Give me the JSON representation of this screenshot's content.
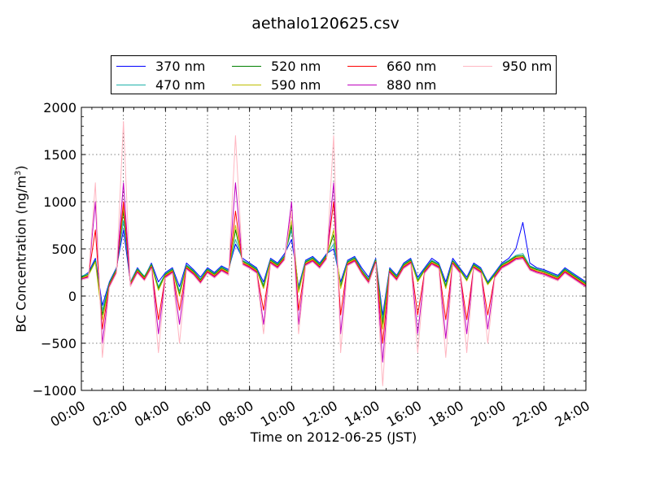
{
  "chart_data": {
    "type": "line",
    "title": "aethalo120625.csv",
    "xlabel": "Time on 2012-06-25 (JST)",
    "ylabel_prefix": "BC Concentration (ng/m",
    "ylabel_sup": "3",
    "ylabel_suffix": ")",
    "x_tick_labels": [
      "00:00",
      "02:00",
      "04:00",
      "06:00",
      "08:00",
      "10:00",
      "12:00",
      "14:00",
      "16:00",
      "18:00",
      "20:00",
      "22:00",
      "24:00"
    ],
    "y_tick_labels": [
      "2000",
      "1500",
      "1000",
      "500",
      "0",
      "−500",
      "−1000"
    ],
    "xlim": [
      "00:00",
      "24:00"
    ],
    "ylim": [
      -1000,
      2000
    ],
    "grid": true,
    "legend_position": "top-center",
    "x": [
      "00:00",
      "00:20",
      "00:40",
      "01:00",
      "01:20",
      "01:40",
      "02:00",
      "02:20",
      "02:40",
      "03:00",
      "03:20",
      "03:40",
      "04:00",
      "04:20",
      "04:40",
      "05:00",
      "05:20",
      "05:40",
      "06:00",
      "06:20",
      "06:40",
      "07:00",
      "07:20",
      "07:40",
      "08:00",
      "08:20",
      "08:40",
      "09:00",
      "09:20",
      "09:40",
      "10:00",
      "10:20",
      "10:40",
      "11:00",
      "11:20",
      "11:40",
      "12:00",
      "12:20",
      "12:40",
      "13:00",
      "13:20",
      "13:40",
      "14:00",
      "14:20",
      "14:40",
      "15:00",
      "15:20",
      "15:40",
      "16:00",
      "16:20",
      "16:40",
      "17:00",
      "17:20",
      "17:40",
      "18:00",
      "18:20",
      "18:40",
      "19:00",
      "19:20",
      "19:40",
      "20:00",
      "20:20",
      "20:40",
      "21:00",
      "21:20",
      "21:40",
      "22:00",
      "22:20",
      "22:40",
      "23:00",
      "23:20",
      "23:40",
      "24:00"
    ],
    "series": [
      {
        "name": "370 nm",
        "color": "#0000ff",
        "values": [
          200,
          250,
          400,
          -100,
          150,
          300,
          700,
          150,
          300,
          200,
          350,
          150,
          250,
          300,
          100,
          350,
          280,
          200,
          300,
          250,
          320,
          280,
          550,
          400,
          350,
          300,
          150,
          400,
          350,
          450,
          600,
          100,
          380,
          420,
          350,
          450,
          500,
          150,
          380,
          420,
          300,
          200,
          400,
          -200,
          300,
          220,
          350,
          400,
          200,
          300,
          400,
          350,
          150,
          400,
          300,
          200,
          350,
          300,
          150,
          250,
          350,
          400,
          500,
          780,
          350,
          300,
          280,
          250,
          220,
          300,
          250,
          200,
          150
        ]
      },
      {
        "name": "470 nm",
        "color": "#20b2aa",
        "values": [
          210,
          240,
          380,
          -150,
          140,
          290,
          800,
          150,
          290,
          210,
          340,
          100,
          240,
          290,
          50,
          330,
          270,
          180,
          290,
          240,
          310,
          270,
          600,
          380,
          340,
          290,
          120,
          390,
          340,
          430,
          700,
          80,
          370,
          410,
          340,
          440,
          550,
          120,
          370,
          410,
          280,
          180,
          390,
          -250,
          290,
          210,
          340,
          390,
          180,
          290,
          380,
          340,
          120,
          380,
          290,
          180,
          340,
          290,
          140,
          240,
          340,
          380,
          430,
          450,
          320,
          290,
          270,
          240,
          210,
          290,
          240,
          190,
          140
        ]
      },
      {
        "name": "520 nm",
        "color": "#008000",
        "values": [
          200,
          230,
          370,
          -200,
          130,
          280,
          900,
          140,
          280,
          200,
          330,
          80,
          230,
          280,
          20,
          320,
          260,
          170,
          280,
          230,
          300,
          260,
          700,
          370,
          330,
          280,
          100,
          380,
          330,
          420,
          750,
          60,
          360,
          400,
          330,
          430,
          650,
          100,
          360,
          400,
          270,
          170,
          380,
          -300,
          280,
          200,
          330,
          380,
          160,
          280,
          370,
          330,
          100,
          370,
          280,
          170,
          330,
          280,
          130,
          230,
          330,
          370,
          420,
          430,
          310,
          280,
          260,
          230,
          200,
          280,
          230,
          180,
          130
        ]
      },
      {
        "name": "590 nm",
        "color": "#bfbf00",
        "values": [
          190,
          220,
          360,
          -250,
          120,
          270,
          950,
          130,
          270,
          190,
          320,
          60,
          220,
          270,
          0,
          310,
          250,
          160,
          270,
          220,
          290,
          250,
          750,
          360,
          320,
          270,
          80,
          370,
          320,
          410,
          800,
          40,
          350,
          390,
          320,
          420,
          700,
          80,
          350,
          390,
          260,
          160,
          370,
          -350,
          270,
          190,
          320,
          370,
          150,
          270,
          360,
          320,
          80,
          360,
          270,
          160,
          320,
          270,
          120,
          220,
          320,
          360,
          410,
          420,
          300,
          270,
          250,
          220,
          190,
          270,
          220,
          170,
          120
        ]
      },
      {
        "name": "660 nm",
        "color": "#ff0000",
        "values": [
          180,
          210,
          700,
          -350,
          110,
          260,
          1000,
          120,
          260,
          180,
          310,
          -250,
          210,
          260,
          -150,
          300,
          240,
          150,
          260,
          210,
          280,
          240,
          900,
          350,
          310,
          260,
          -150,
          360,
          310,
          400,
          900,
          -150,
          340,
          380,
          310,
          410,
          1000,
          -200,
          340,
          380,
          250,
          150,
          360,
          -500,
          260,
          180,
          310,
          360,
          -200,
          260,
          350,
          310,
          -250,
          350,
          260,
          -250,
          310,
          260,
          -200,
          210,
          310,
          350,
          400,
          410,
          290,
          260,
          240,
          210,
          180,
          260,
          210,
          160,
          110
        ]
      },
      {
        "name": "880 nm",
        "color": "#bf00bf",
        "values": [
          180,
          200,
          1000,
          -500,
          100,
          250,
          1200,
          110,
          250,
          170,
          300,
          -400,
          200,
          250,
          -300,
          290,
          230,
          140,
          250,
          200,
          270,
          230,
          1200,
          340,
          300,
          250,
          -300,
          350,
          300,
          390,
          1000,
          -300,
          330,
          370,
          300,
          400,
          1200,
          -400,
          330,
          370,
          240,
          140,
          350,
          -700,
          250,
          170,
          300,
          350,
          -400,
          250,
          340,
          300,
          -450,
          340,
          250,
          -400,
          300,
          250,
          -350,
          200,
          300,
          340,
          390,
          400,
          280,
          250,
          230,
          200,
          170,
          250,
          200,
          150,
          100
        ]
      },
      {
        "name": "950 nm",
        "color": "#ffb6c1",
        "values": [
          170,
          190,
          1200,
          -650,
          90,
          240,
          1850,
          100,
          240,
          160,
          290,
          -600,
          190,
          240,
          -500,
          280,
          220,
          130,
          240,
          190,
          260,
          220,
          1700,
          330,
          290,
          240,
          -400,
          340,
          290,
          380,
          900,
          -400,
          320,
          360,
          290,
          390,
          1700,
          -600,
          320,
          360,
          230,
          130,
          340,
          -950,
          240,
          160,
          290,
          340,
          -600,
          240,
          330,
          290,
          -650,
          330,
          240,
          -600,
          290,
          240,
          -500,
          190,
          290,
          330,
          380,
          390,
          270,
          240,
          220,
          190,
          160,
          240,
          190,
          140,
          90
        ]
      }
    ]
  }
}
